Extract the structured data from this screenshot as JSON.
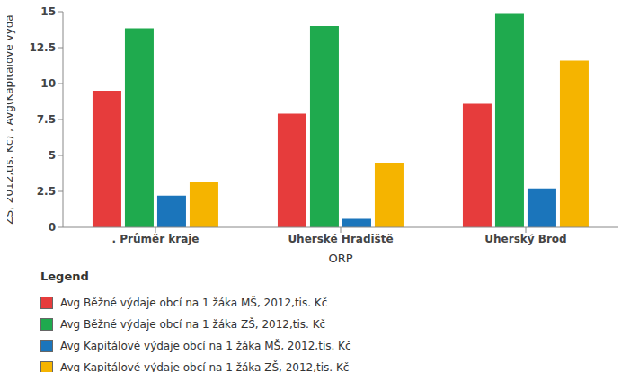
{
  "chart_data": {
    "type": "bar",
    "categories": [
      ". Průměr kraje",
      "Uherské Hradiště",
      "Uherský Brod"
    ],
    "x_label": "ORP",
    "y_label": "ZŠ, 2012,tis. Kč) , Avg(Kapitálové výda",
    "legend_title": "Legend",
    "legend": "bottom",
    "ylim": [
      0,
      15
    ],
    "yticks": [
      0,
      2.5,
      5,
      7.5,
      10,
      12.5,
      15
    ],
    "grid": false,
    "series": [
      {
        "name": "Avg Běžné výdaje obcí na 1 žáka MŠ, 2012,tis. Kč",
        "color": "#e63c3c",
        "values": [
          9.5,
          7.9,
          8.6
        ]
      },
      {
        "name": "Avg Běžné výdaje obcí na 1 žáka ZŠ, 2012,tis. Kč",
        "color": "#1faa4e",
        "values": [
          13.85,
          14.0,
          14.85
        ]
      },
      {
        "name": "Avg Kapitálové výdaje obcí na 1 žáka MŠ, 2012,tis. Kč",
        "color": "#1b75bb",
        "values": [
          2.2,
          0.6,
          2.7
        ]
      },
      {
        "name": "Avg Kapitálové výdaje obcí na 1 žáka ZŠ, 2012,tis. Kč",
        "color": "#f5b400",
        "values": [
          3.15,
          4.5,
          11.6
        ]
      }
    ]
  }
}
